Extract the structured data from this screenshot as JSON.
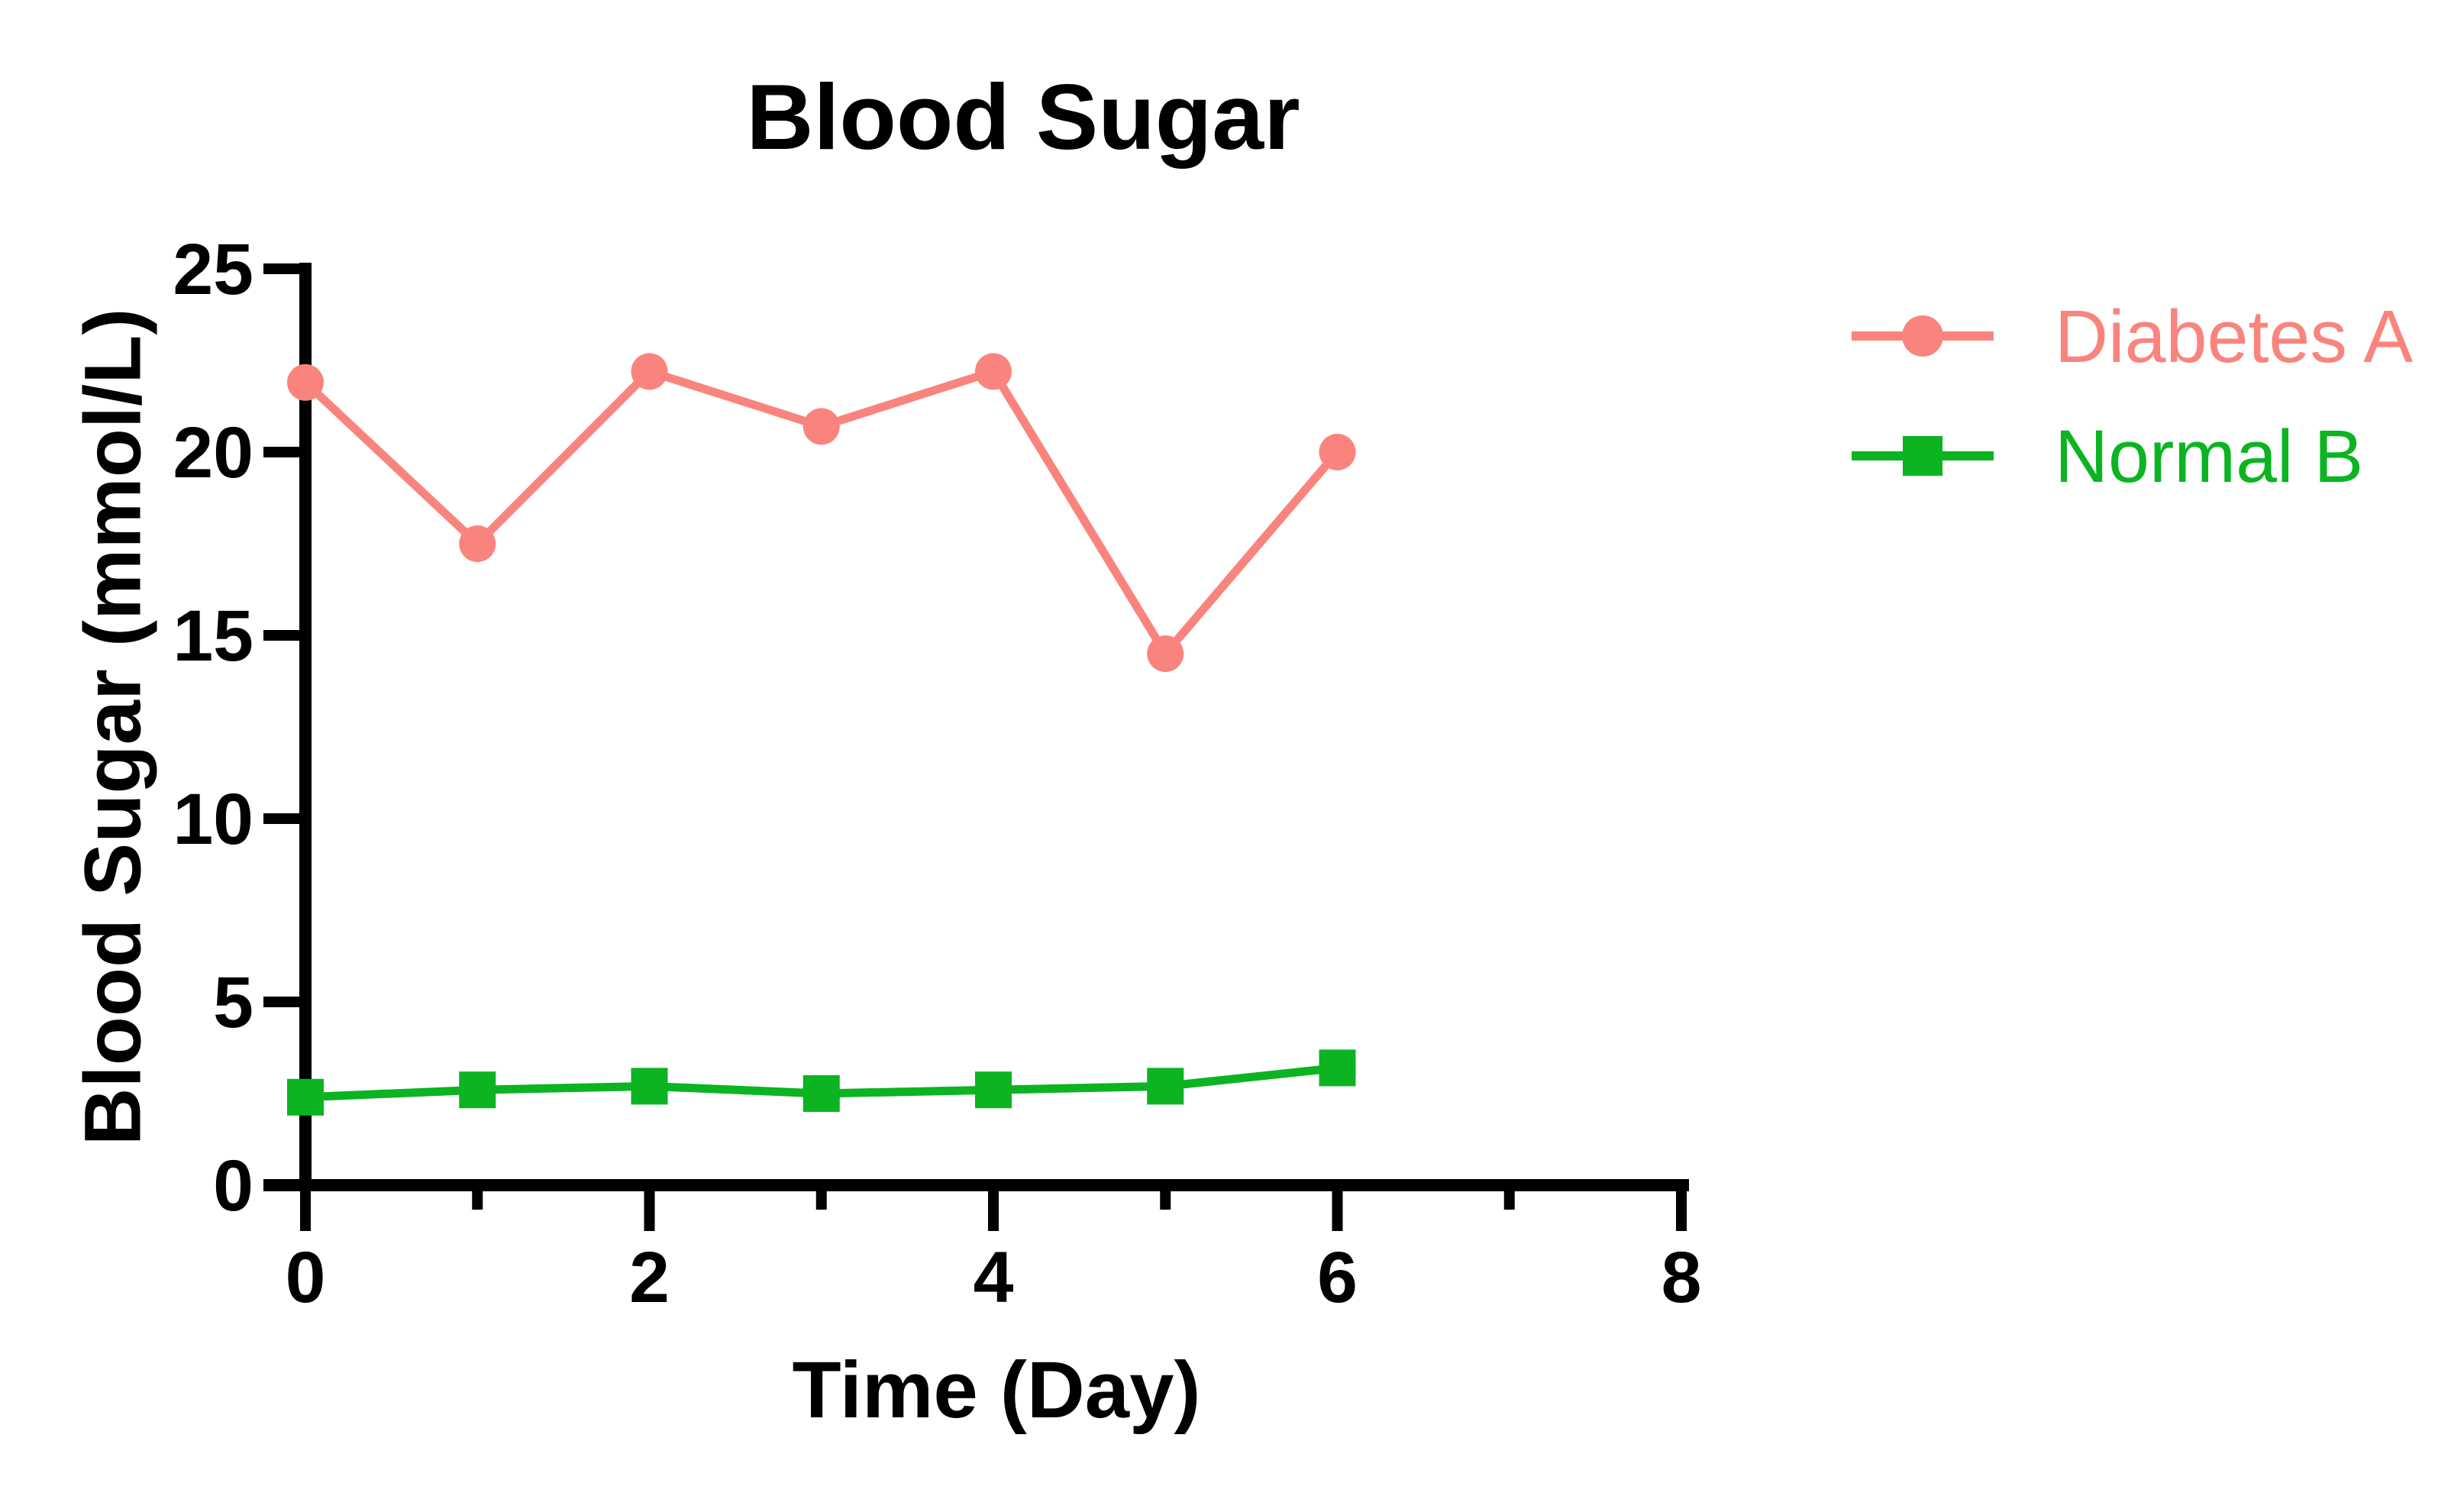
{
  "chart_data": {
    "type": "line",
    "title": "Blood Sugar",
    "xlabel": "Time (Day)",
    "ylabel": "Blood Sugar (mmol/L)",
    "x": [
      0,
      1,
      2,
      3,
      4,
      5,
      6
    ],
    "series": [
      {
        "name": "Diabetes A",
        "color": "#F9847E",
        "marker": "circle",
        "values": [
          21.9,
          17.5,
          22.2,
          20.7,
          22.2,
          14.5,
          20.0
        ]
      },
      {
        "name": "Normal B",
        "color": "#0BB420",
        "marker": "square",
        "values": [
          2.4,
          2.6,
          2.7,
          2.5,
          2.6,
          2.7,
          3.2
        ]
      }
    ],
    "xlim": [
      0,
      8
    ],
    "ylim": [
      0,
      25
    ],
    "x_major_ticks": [
      0,
      2,
      4,
      6,
      8
    ],
    "x_minor_ticks": [
      1,
      3,
      5,
      7
    ],
    "y_ticks": [
      0,
      5,
      10,
      15,
      20,
      25
    ],
    "grid": false,
    "legend_position": "right",
    "axis_color": "#000000",
    "background_color": "#FFFFFF"
  }
}
